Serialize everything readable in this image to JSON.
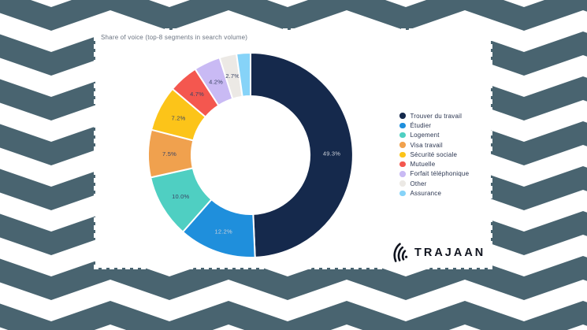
{
  "background": {
    "chevron_color": "#496470",
    "base_color": "#ffffff"
  },
  "card": {
    "background": "#ffffff",
    "border_style": "white-dashed"
  },
  "chart_data": {
    "type": "pie",
    "subtype": "donut",
    "title": "Share of voice (top-8 segments in search volume)",
    "legend_position": "right",
    "start_angle_deg": 0,
    "direction": "clockwise",
    "segments": [
      {
        "label": "Trouver du travail",
        "value": 49.3,
        "display": "49.3%",
        "color": "#15294C",
        "text": "light"
      },
      {
        "label": "Étudier",
        "value": 12.2,
        "display": "12.2%",
        "color": "#1F8FDC",
        "text": "light"
      },
      {
        "label": "Logement",
        "value": 10.0,
        "display": "10.0%",
        "color": "#4FCFC2",
        "text": "dark"
      },
      {
        "label": "Visa travail",
        "value": 7.5,
        "display": "7.5%",
        "color": "#F0A14E",
        "text": "dark"
      },
      {
        "label": "Sécurité sociale",
        "value": 7.2,
        "display": "7.2%",
        "color": "#FCC419",
        "text": "dark"
      },
      {
        "label": "Mutuelle",
        "value": 4.7,
        "display": "4.7%",
        "color": "#F4574F",
        "text": "dark"
      },
      {
        "label": "Forfait téléphonique",
        "value": 4.2,
        "display": "4.2%",
        "color": "#C9BAF4",
        "text": "dark"
      },
      {
        "label": "Other",
        "value": 2.7,
        "display": "2.7%",
        "color": "#ECE9E5",
        "text": "dark"
      },
      {
        "label": "Assurance",
        "value": 2.2,
        "display": "",
        "color": "#86D3F8",
        "text": "dark"
      }
    ],
    "label_text_colors": {
      "light": "#CDD1DA",
      "dark": "#3A4565"
    },
    "slice_gap_color": "#ffffff"
  },
  "logo": {
    "text": "TRAJAAN",
    "color": "#10141F"
  }
}
